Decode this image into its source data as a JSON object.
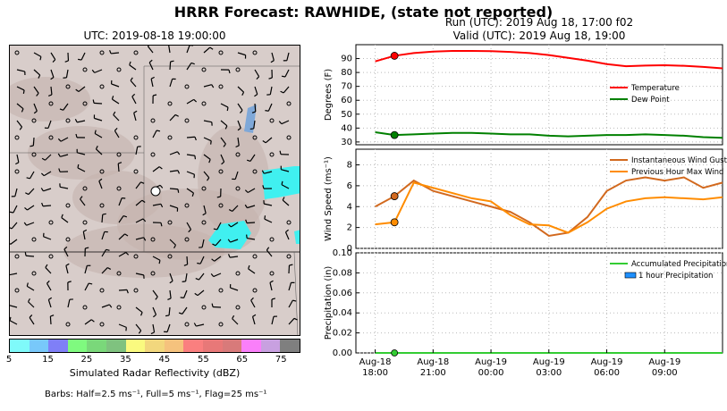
{
  "title": "HRRR Forecast: RAWHIDE, (state not reported)",
  "map": {
    "title": "UTC: 2019-08-18 19:00:00",
    "colorbar_label": "Simulated Radar Reflectivity (dBZ)",
    "colorbar_ticks": [
      "5",
      "15",
      "25",
      "35",
      "45",
      "55",
      "65",
      "75"
    ],
    "colorbar_colors": [
      "#7ffafa",
      "#78c8fa",
      "#7f7ff7",
      "#7ffa7f",
      "#7ad87a",
      "#7fc27f",
      "#fafa7f",
      "#f2d77d",
      "#f5c27d",
      "#fa7f7f",
      "#e87878",
      "#d87a7a",
      "#fa7ffa",
      "#c8a0e0",
      "#7f7f7f"
    ],
    "barbs_note": "Barbs: Half=2.5 ms⁻¹, Full=5 ms⁻¹, Flag=25 ms⁻¹",
    "radar_color": "#40f0f0",
    "site_marker_color": "#ffffff"
  },
  "run_line": "Run (UTC): 2019 Aug 18, 17:00 f02",
  "valid_line": "Valid (UTC): 2019 Aug 18, 19:00",
  "chart_data": [
    {
      "type": "line",
      "ylabel": "Degrees (F)",
      "ylim": [
        28,
        100
      ],
      "yticks": [
        30,
        40,
        50,
        60,
        70,
        80,
        90
      ],
      "grid": true,
      "legend_position": "right",
      "x_hours": [
        0,
        1,
        2,
        3,
        4,
        5,
        6,
        7,
        8,
        9,
        10,
        11,
        12,
        13,
        14,
        15,
        16,
        17,
        18
      ],
      "series": [
        {
          "name": "Temperature",
          "color": "#ff0000",
          "values": [
            88,
            92,
            94,
            95,
            95.5,
            95.5,
            95.3,
            94.8,
            94,
            92.5,
            90.5,
            88.5,
            86,
            84.5,
            85,
            85.2,
            84.8,
            84,
            83
          ]
        },
        {
          "name": "Dew Point",
          "color": "#008000",
          "values": [
            37,
            35,
            35.5,
            36,
            36.5,
            36.5,
            36,
            35.5,
            35.5,
            34.5,
            34,
            34.5,
            35,
            35,
            35.5,
            35,
            34.5,
            33.5,
            33
          ]
        }
      ],
      "current_marker_hour": 1
    },
    {
      "type": "line",
      "ylabel": "Wind Speed (ms⁻¹)",
      "ylim": [
        0,
        9.5
      ],
      "yticks": [
        0,
        2,
        4,
        6,
        8
      ],
      "grid": true,
      "legend_position": "top-right",
      "x_hours": [
        0,
        1,
        2,
        3,
        4,
        5,
        6,
        7,
        8,
        9,
        10,
        11,
        12,
        13,
        14,
        15,
        16,
        17,
        18
      ],
      "series": [
        {
          "name": "Instantaneous Wind Gust",
          "color": "#d2691e",
          "values": [
            4,
            5,
            6.5,
            5.5,
            5,
            4.5,
            4,
            3.5,
            2.5,
            1.2,
            1.5,
            3,
            5.5,
            6.5,
            6.8,
            6.5,
            6.8,
            5.8,
            6.3
          ]
        },
        {
          "name": "Previous Hour Max Wind",
          "color": "#ff8c00",
          "values": [
            2.3,
            2.5,
            6.3,
            5.8,
            5.3,
            4.8,
            4.5,
            3.2,
            2.3,
            2.2,
            1.5,
            2.5,
            3.8,
            4.5,
            4.8,
            4.9,
            4.8,
            4.7,
            4.9
          ]
        }
      ],
      "current_marker_hour": 1
    },
    {
      "type": "bar",
      "ylabel": "Precipitation (in)",
      "ylim": [
        0,
        0.1
      ],
      "yticks": [
        "0.00",
        "0.02",
        "0.04",
        "0.06",
        "0.08",
        "0.10"
      ],
      "grid": true,
      "legend_position": "top-right",
      "x_tick_labels": [
        "Aug-18\n18:00",
        "Aug-18\n21:00",
        "Aug-19\n00:00",
        "Aug-19\n03:00",
        "Aug-19\n06:00",
        "Aug-19\n09:00"
      ],
      "x_tick_hours": [
        0,
        3,
        6,
        9,
        12,
        15
      ],
      "series": [
        {
          "name": "Accumulated Precipitation",
          "color": "#33cc33",
          "values": [
            0,
            0,
            0,
            0,
            0,
            0,
            0,
            0,
            0,
            0,
            0,
            0,
            0,
            0,
            0,
            0,
            0,
            0,
            0
          ]
        },
        {
          "name": "1 hour Precipitation",
          "color": "#1e90ff",
          "values": [
            0,
            0,
            0,
            0,
            0,
            0,
            0,
            0,
            0,
            0,
            0,
            0,
            0,
            0,
            0,
            0,
            0,
            0,
            0
          ]
        }
      ],
      "current_marker_hour": 1
    }
  ]
}
